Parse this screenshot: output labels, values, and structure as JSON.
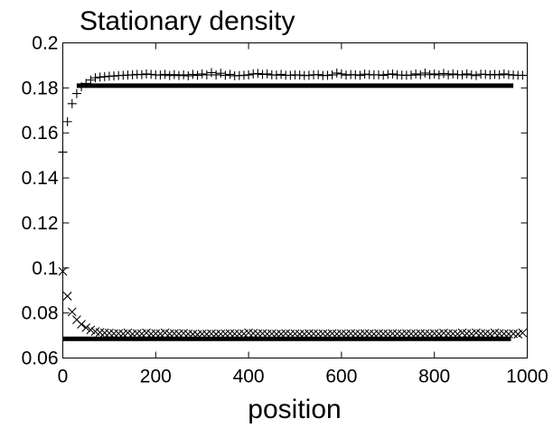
{
  "chart_data": {
    "type": "scatter",
    "title": "Stationary density",
    "xlabel": "position",
    "ylabel": "",
    "xlim": [
      0,
      1000
    ],
    "ylim": [
      0.06,
      0.2
    ],
    "x_ticks": [
      0,
      200,
      400,
      600,
      800,
      1000
    ],
    "x_tick_labels": [
      "0",
      "200",
      "400",
      "600",
      "800",
      "1000"
    ],
    "y_ticks": [
      0.06,
      0.08,
      0.1,
      0.12,
      0.14,
      0.16,
      0.18,
      0.2
    ],
    "y_tick_labels": [
      "0.06",
      "0.08",
      "0.1",
      "0.12",
      "0.14",
      "0.16",
      "0.18",
      "0.2"
    ],
    "grid": false,
    "series": [
      {
        "marker": "plus",
        "color": "#000000",
        "x": [
          0,
          10,
          20,
          30,
          40,
          50,
          60,
          70,
          80,
          90,
          100,
          110,
          120,
          130,
          140,
          150,
          160,
          170,
          180,
          190,
          200,
          210,
          220,
          230,
          240,
          250,
          260,
          270,
          280,
          290,
          300,
          310,
          320,
          330,
          340,
          350,
          360,
          370,
          380,
          390,
          400,
          410,
          420,
          430,
          440,
          450,
          460,
          470,
          480,
          490,
          500,
          510,
          520,
          530,
          540,
          550,
          560,
          570,
          580,
          590,
          600,
          610,
          620,
          630,
          640,
          650,
          660,
          670,
          680,
          690,
          700,
          710,
          720,
          730,
          740,
          750,
          760,
          770,
          780,
          790,
          800,
          810,
          820,
          830,
          840,
          850,
          860,
          870,
          880,
          890,
          900,
          910,
          920,
          930,
          940,
          950,
          960,
          970,
          980,
          990
        ],
        "y": [
          0.1515,
          0.165,
          0.173,
          0.1775,
          0.1805,
          0.182,
          0.1835,
          0.1845,
          0.1848,
          0.185,
          0.1852,
          0.1853,
          0.1855,
          0.1856,
          0.1857,
          0.1858,
          0.186,
          0.1859,
          0.1862,
          0.186,
          0.1858,
          0.1857,
          0.186,
          0.1855,
          0.1859,
          0.1855,
          0.1858,
          0.1854,
          0.186,
          0.1856,
          0.1862,
          0.1858,
          0.1868,
          0.1858,
          0.1865,
          0.1856,
          0.186,
          0.1854,
          0.1855,
          0.1856,
          0.1858,
          0.1862,
          0.1864,
          0.186,
          0.1862,
          0.1858,
          0.1857,
          0.186,
          0.1856,
          0.1856,
          0.1858,
          0.1857,
          0.1855,
          0.1856,
          0.1858,
          0.1859,
          0.1855,
          0.1856,
          0.1858,
          0.1866,
          0.1862,
          0.1857,
          0.1859,
          0.1858,
          0.1856,
          0.1861,
          0.1859,
          0.1858,
          0.1858,
          0.1856,
          0.186,
          0.1862,
          0.1858,
          0.1857,
          0.1856,
          0.1857,
          0.1862,
          0.1858,
          0.1866,
          0.1859,
          0.1862,
          0.1858,
          0.1864,
          0.1858,
          0.1862,
          0.1859,
          0.1858,
          0.1862,
          0.1858,
          0.1855,
          0.1861,
          0.186,
          0.1858,
          0.186,
          0.1858,
          0.1862,
          0.1859,
          0.1857,
          0.1856,
          0.1856
        ]
      },
      {
        "marker": "cross",
        "color": "#000000",
        "x": [
          0,
          10,
          20,
          30,
          40,
          50,
          60,
          70,
          80,
          90,
          100,
          110,
          120,
          130,
          140,
          150,
          160,
          170,
          180,
          190,
          200,
          210,
          220,
          230,
          240,
          250,
          260,
          270,
          280,
          290,
          300,
          310,
          320,
          330,
          340,
          350,
          360,
          370,
          380,
          390,
          400,
          410,
          420,
          430,
          440,
          450,
          460,
          470,
          480,
          490,
          500,
          510,
          520,
          530,
          540,
          550,
          560,
          570,
          580,
          590,
          600,
          610,
          620,
          630,
          640,
          650,
          660,
          670,
          680,
          690,
          700,
          710,
          720,
          730,
          740,
          750,
          760,
          770,
          780,
          790,
          800,
          810,
          820,
          830,
          840,
          850,
          860,
          870,
          880,
          890,
          900,
          910,
          920,
          930,
          940,
          950,
          960,
          970,
          980,
          990
        ],
        "y": [
          0.0985,
          0.0875,
          0.0805,
          0.077,
          0.075,
          0.0735,
          0.0725,
          0.0718,
          0.0714,
          0.0712,
          0.0711,
          0.0709,
          0.0709,
          0.0708,
          0.0712,
          0.0707,
          0.0709,
          0.0708,
          0.0712,
          0.0708,
          0.0709,
          0.0708,
          0.0712,
          0.0708,
          0.0709,
          0.0708,
          0.071,
          0.0707,
          0.0706,
          0.0704,
          0.0707,
          0.0706,
          0.0708,
          0.0706,
          0.0707,
          0.0708,
          0.0709,
          0.0708,
          0.0707,
          0.0708,
          0.0712,
          0.071,
          0.0708,
          0.0709,
          0.0707,
          0.0708,
          0.0706,
          0.0707,
          0.0709,
          0.0707,
          0.0708,
          0.0706,
          0.0707,
          0.0709,
          0.0708,
          0.0707,
          0.0708,
          0.0706,
          0.0709,
          0.0707,
          0.0708,
          0.0707,
          0.0709,
          0.0708,
          0.0707,
          0.0709,
          0.0708,
          0.0707,
          0.0709,
          0.0708,
          0.0707,
          0.0709,
          0.0708,
          0.0707,
          0.0709,
          0.0708,
          0.0707,
          0.0709,
          0.0708,
          0.0707,
          0.0709,
          0.0708,
          0.0711,
          0.0709,
          0.0708,
          0.0707,
          0.0712,
          0.0709,
          0.0708,
          0.0712,
          0.0709,
          0.0708,
          0.0707,
          0.0712,
          0.0709,
          0.0708,
          0.0707,
          0.0708,
          0.0706,
          0.0712
        ]
      }
    ],
    "reference_lines": [
      {
        "orientation": "horizontal",
        "y": 0.181,
        "x_range": [
          30,
          970
        ]
      },
      {
        "orientation": "horizontal",
        "y": 0.0685,
        "x_range": [
          0,
          965
        ]
      }
    ]
  }
}
